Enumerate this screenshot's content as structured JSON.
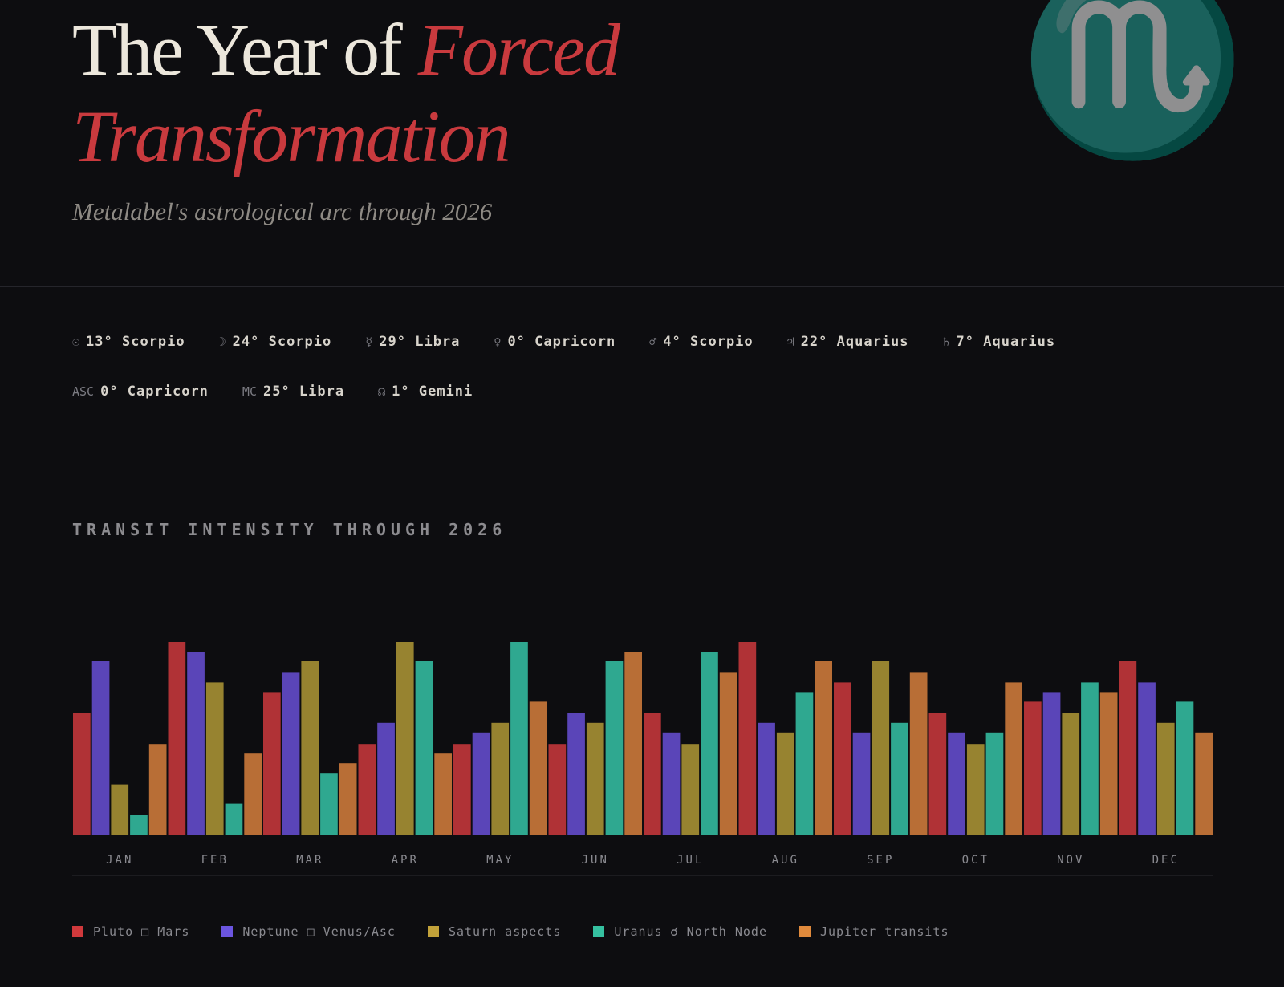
{
  "hero": {
    "watermark": "♏",
    "title_plain": "The Year of ",
    "title_accent_1": "Forced",
    "title_accent_2": "Transformation",
    "subtitle": "Metalabel's astrological arc through 2026"
  },
  "placements": {
    "row1": [
      {
        "symbol": "☉",
        "value": "13° Scorpio",
        "icon": "sun-icon"
      },
      {
        "symbol": "☽",
        "value": "24° Scorpio",
        "icon": "moon-icon"
      },
      {
        "symbol": "☿",
        "value": "29° Libra",
        "icon": "mercury-icon"
      },
      {
        "symbol": "♀",
        "value": "0° Capricorn",
        "icon": "venus-icon"
      },
      {
        "symbol": "♂",
        "value": "4° Scorpio",
        "icon": "mars-icon"
      },
      {
        "symbol": "♃",
        "value": "22° Aquarius",
        "icon": "jupiter-icon"
      },
      {
        "symbol": "♄",
        "value": "7° Aquarius",
        "icon": "saturn-icon"
      }
    ],
    "row2": [
      {
        "symbol": "ASC",
        "value": "0° Capricorn",
        "icon": "ascendant-label"
      },
      {
        "symbol": "MC",
        "value": "25° Libra",
        "icon": "midheaven-label"
      },
      {
        "symbol": "☊",
        "value": "1° Gemini",
        "icon": "north-node-icon"
      }
    ]
  },
  "chart_data": {
    "type": "bar",
    "title": "TRANSIT INTENSITY THROUGH 2026",
    "categories": [
      "JAN",
      "FEB",
      "MAR",
      "APR",
      "MAY",
      "JUN",
      "JUL",
      "AUG",
      "SEP",
      "OCT",
      "NOV",
      "DEC"
    ],
    "ylim": [
      0,
      100
    ],
    "grid": false,
    "legend_position": "bottom-left",
    "series": [
      {
        "name": "Pluto □ Mars",
        "color": "#b03236",
        "values": [
          63,
          100,
          74,
          47,
          47,
          47,
          63,
          100,
          79,
          63,
          69,
          90
        ]
      },
      {
        "name": "Neptune □ Venus/Asc",
        "color": "#5a45b8",
        "values": [
          90,
          95,
          84,
          58,
          53,
          63,
          53,
          58,
          53,
          53,
          74,
          79
        ]
      },
      {
        "name": "Saturn aspects",
        "color": "#978330",
        "values": [
          26,
          79,
          90,
          100,
          58,
          58,
          47,
          53,
          90,
          47,
          63,
          58
        ]
      },
      {
        "name": "Uranus ☌ North Node",
        "color": "#2fa890",
        "values": [
          10,
          16,
          32,
          90,
          100,
          90,
          95,
          74,
          58,
          53,
          79,
          69
        ]
      },
      {
        "name": "Jupiter transits",
        "color": "#b86e36",
        "values": [
          47,
          42,
          37,
          42,
          69,
          95,
          84,
          90,
          84,
          79,
          74,
          53
        ]
      }
    ],
    "legend_colors": [
      "#d0393c",
      "#6b55e0",
      "#c2a23a",
      "#35c0a0",
      "#e08a3c"
    ]
  }
}
